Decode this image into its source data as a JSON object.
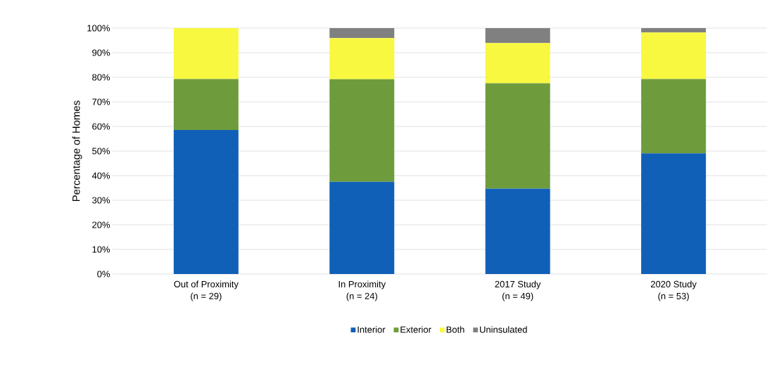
{
  "chart_data": {
    "type": "bar",
    "stacked": true,
    "ylabel": "Percentage of Homes",
    "categories": [
      "Out of Proximity\n(n = 29)",
      "In Proximity\n(n = 24)",
      "2017 Study\n(n = 49)",
      "2020 Study\n(n = 53)"
    ],
    "series": [
      {
        "name": "Interior",
        "color": "#1060b8",
        "values": [
          58.6,
          37.5,
          34.7,
          49.1
        ]
      },
      {
        "name": "Exterior",
        "color": "#6e9c3c",
        "values": [
          20.7,
          41.7,
          42.9,
          30.2
        ]
      },
      {
        "name": "Both",
        "color": "#f8f840",
        "values": [
          20.7,
          16.7,
          16.3,
          18.9
        ]
      },
      {
        "name": "Uninsulated",
        "color": "#808080",
        "values": [
          0,
          4.2,
          6.1,
          1.9
        ]
      }
    ],
    "ylim": [
      0,
      100
    ],
    "yticks": [
      {
        "value": 0,
        "label": "0%"
      },
      {
        "value": 10,
        "label": "10%"
      },
      {
        "value": 20,
        "label": "20%"
      },
      {
        "value": 30,
        "label": "30%"
      },
      {
        "value": 40,
        "label": "40%"
      },
      {
        "value": 50,
        "label": "50%"
      },
      {
        "value": 60,
        "label": "60%"
      },
      {
        "value": 70,
        "label": "70%"
      },
      {
        "value": 80,
        "label": "80%"
      },
      {
        "value": 90,
        "label": "90%"
      },
      {
        "value": 100,
        "label": "100%"
      }
    ],
    "grid": "y",
    "legend": "bottom"
  }
}
